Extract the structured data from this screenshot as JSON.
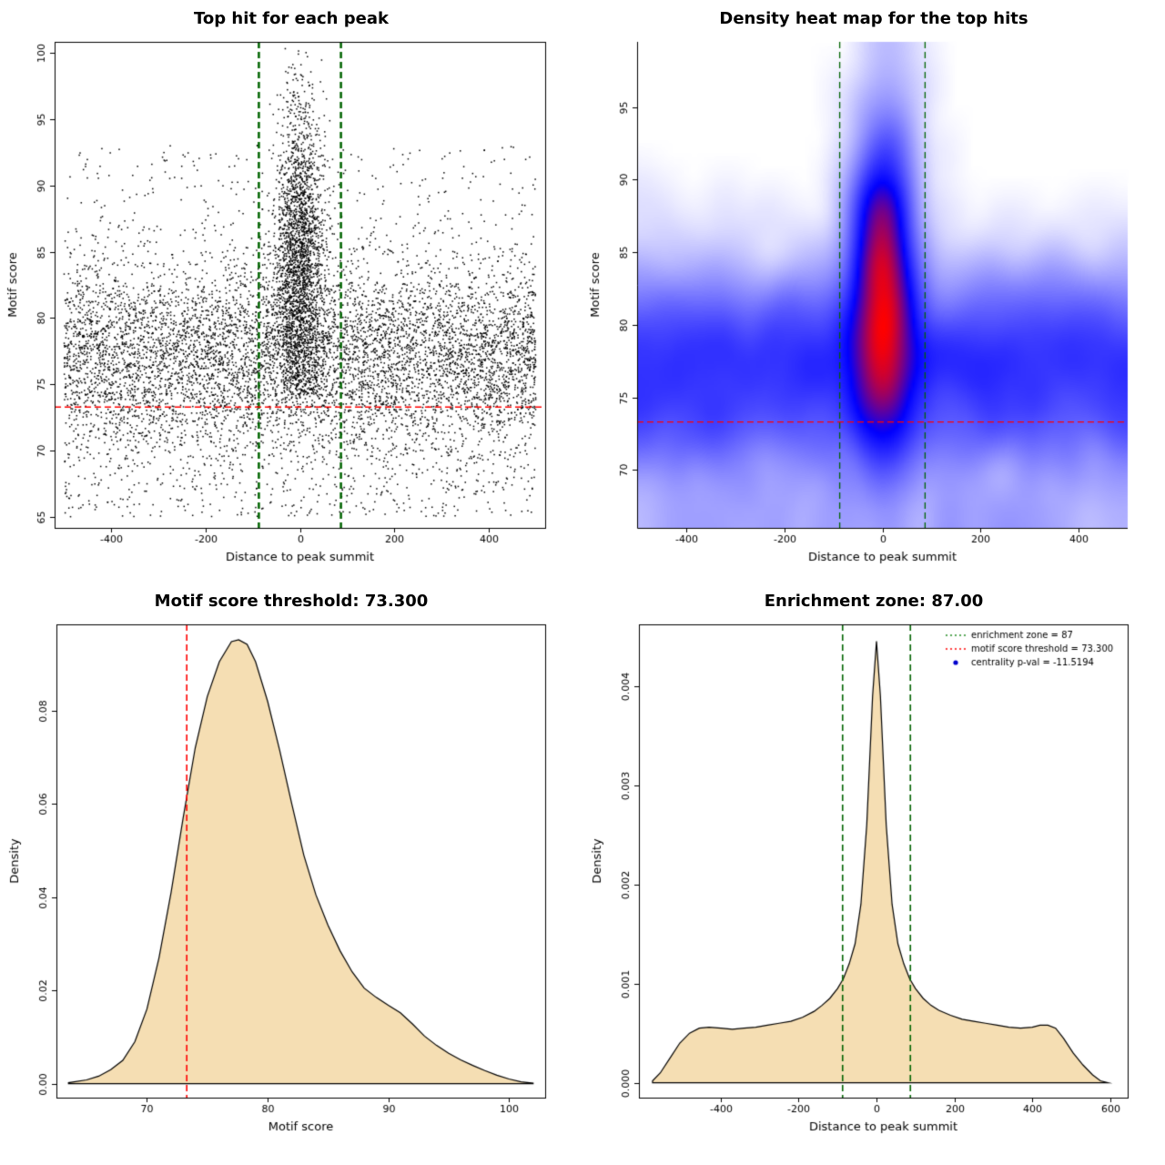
{
  "page": {
    "background": "#FFFFFF"
  },
  "chart_data": [
    {
      "id": "top-hit-scatter",
      "type": "scatter",
      "title": "Top hit for each peak",
      "xlabel": "Distance to peak summit",
      "ylabel": "Motif score",
      "xlim": [
        -520,
        520
      ],
      "ylim": [
        64.2,
        100.8
      ],
      "xticks": [
        -400,
        -200,
        0,
        200,
        400
      ],
      "xtick_labels": [
        "-400",
        "-200",
        "0",
        "200",
        "400"
      ],
      "yticks": [
        65,
        70,
        75,
        80,
        85,
        90,
        95,
        100
      ],
      "ytick_labels": [
        "65",
        "70",
        "75",
        "80",
        "85",
        "90",
        "95",
        "100"
      ],
      "point_color": "#000000",
      "vlines": {
        "x": [
          -87,
          87
        ],
        "color": "#006400",
        "dash": "dashed",
        "width": 2.5
      },
      "hline": {
        "y": 73.3,
        "color": "#FF0000",
        "dash": "dashed",
        "width": 1.6
      },
      "point_cloud": {
        "seed": 42,
        "x_range": [
          -500,
          500
        ],
        "background": {
          "n": 6500,
          "y_mean": 77.3,
          "y_sd": 3.4
        },
        "low_tail": {
          "n": 900,
          "y_min": 65,
          "y_max": 74.5
        },
        "high_tail": {
          "n": 350,
          "y_min": 84,
          "y_max": 93
        },
        "central": {
          "n": 2600,
          "x_sd": 26,
          "y_mean": 84,
          "y_sd": 6.5,
          "y_min": 74,
          "y_max": 100.4
        }
      }
    },
    {
      "id": "density-heatmap",
      "type": "heatmap",
      "title": "Density heat map for the top hits",
      "xlabel": "Distance to peak summit",
      "ylabel": "Motif score",
      "xlim": [
        -500,
        500
      ],
      "ylim": [
        66,
        99.5
      ],
      "xticks": [
        -400,
        -200,
        0,
        200,
        400
      ],
      "xtick_labels": [
        "-400",
        "-200",
        "0",
        "200",
        "400"
      ],
      "yticks": [
        70,
        75,
        80,
        85,
        90,
        95
      ],
      "ytick_labels": [
        "70",
        "75",
        "80",
        "85",
        "90",
        "95"
      ],
      "colormap": [
        "#FFFFFF",
        "#0000FF",
        "#FF0000"
      ],
      "vlines": {
        "x": [
          -87,
          87
        ],
        "color": "#006400",
        "dash": "dashed",
        "width": 1.3
      },
      "hline": {
        "y": 73.3,
        "color": "#FF0000",
        "dash": "dashed",
        "width": 1.3
      },
      "kde_cloud": {
        "seed": 7,
        "x_range": [
          -500,
          500
        ],
        "background": {
          "n": 6000,
          "y_mean": 77.2,
          "y_sd": 3.3
        },
        "low_band": {
          "n": 900,
          "y_min": 66,
          "y_max": 74
        },
        "central": {
          "n": 3000,
          "x_sd": 30,
          "y_mean": 82,
          "y_sd": 6
        }
      }
    },
    {
      "id": "motif-score-density",
      "type": "area",
      "title": "Motif score threshold: 73.300",
      "xlabel": "Motif score",
      "ylabel": "Density",
      "xlim": [
        62.5,
        103
      ],
      "ylim": [
        -0.003,
        0.0985
      ],
      "xticks": [
        70,
        80,
        90,
        100
      ],
      "xtick_labels": [
        "70",
        "80",
        "90",
        "100"
      ],
      "yticks": [
        0,
        0.02,
        0.04,
        0.06,
        0.08
      ],
      "ytick_labels": [
        "0.00",
        "0.02",
        "0.04",
        "0.06",
        "0.08"
      ],
      "fill": "#F5DEB3",
      "line_color": "#000000",
      "vlines": {
        "x": [
          73.3
        ],
        "color": "#FF0000",
        "dash": "dashed",
        "width": 1.6
      },
      "curve": {
        "x": [
          63.5,
          65,
          66,
          67,
          68,
          69,
          70,
          71,
          72,
          73,
          74,
          75,
          76,
          77,
          77.6,
          78.3,
          79,
          80,
          81,
          82,
          83,
          84,
          85,
          86,
          87,
          88,
          89,
          90,
          91,
          92,
          93,
          94,
          95,
          96,
          97,
          98,
          99,
          100,
          101,
          102
        ],
        "y": [
          0.0002,
          0.0008,
          0.0016,
          0.003,
          0.005,
          0.009,
          0.016,
          0.027,
          0.041,
          0.057,
          0.072,
          0.083,
          0.0905,
          0.0948,
          0.0952,
          0.0942,
          0.0905,
          0.082,
          0.0715,
          0.06,
          0.049,
          0.0405,
          0.034,
          0.0285,
          0.024,
          0.0205,
          0.0185,
          0.0168,
          0.0152,
          0.0128,
          0.0102,
          0.0082,
          0.0065,
          0.0051,
          0.0039,
          0.0028,
          0.0018,
          0.001,
          0.0004,
          0.0001
        ]
      }
    },
    {
      "id": "distance-density",
      "type": "area",
      "title": "Enrichment zone: 87.00",
      "xlabel": "Distance to peak summit",
      "ylabel": "Density",
      "xlim": [
        -610,
        645
      ],
      "ylim": [
        -0.00015,
        0.00462
      ],
      "xticks": [
        -400,
        -200,
        0,
        200,
        400,
        600
      ],
      "xtick_labels": [
        "-400",
        "-200",
        "0",
        "200",
        "400",
        "600"
      ],
      "yticks": [
        0,
        0.001,
        0.002,
        0.003,
        0.004
      ],
      "ytick_labels": [
        "0.000",
        "0.001",
        "0.002",
        "0.003",
        "0.004"
      ],
      "fill": "#F5DEB3",
      "line_color": "#000000",
      "vlines": {
        "x": [
          -87,
          87
        ],
        "color": "#006400",
        "dash": "dashed",
        "width": 1.6
      },
      "legend": {
        "position": "topright",
        "entries": [
          {
            "marker": "line",
            "dash": "dotted",
            "color": "#228B22",
            "label": "enrichment zone = 87"
          },
          {
            "marker": "line",
            "dash": "dotted",
            "color": "#FF0000",
            "label": "motif score threshold = 73.300"
          },
          {
            "marker": "point",
            "color": "#0000CD",
            "label": "centrality p-val = -11.5194"
          }
        ]
      },
      "curve": {
        "x": [
          -575,
          -555,
          -530,
          -505,
          -480,
          -455,
          -430,
          -400,
          -370,
          -340,
          -310,
          -280,
          -250,
          -220,
          -190,
          -160,
          -140,
          -120,
          -100,
          -85,
          -70,
          -55,
          -40,
          -25,
          -10,
          0,
          10,
          25,
          40,
          55,
          70,
          85,
          100,
          120,
          140,
          160,
          190,
          220,
          250,
          280,
          310,
          340,
          370,
          400,
          420,
          440,
          460,
          480,
          505,
          530,
          555,
          575,
          595
        ],
        "y": [
          2e-05,
          0.0001,
          0.00025,
          0.0004,
          0.0005,
          0.00055,
          0.00056,
          0.00055,
          0.00054,
          0.00055,
          0.00056,
          0.00058,
          0.0006,
          0.00062,
          0.00066,
          0.00072,
          0.00078,
          0.00085,
          0.00095,
          0.00105,
          0.0012,
          0.0014,
          0.0018,
          0.0026,
          0.0039,
          0.00445,
          0.0039,
          0.0026,
          0.0018,
          0.0014,
          0.0012,
          0.00105,
          0.00095,
          0.00085,
          0.00078,
          0.00073,
          0.00068,
          0.00064,
          0.00062,
          0.0006,
          0.00058,
          0.00056,
          0.00055,
          0.00056,
          0.00058,
          0.00058,
          0.00055,
          0.00045,
          0.0003,
          0.00018,
          8e-05,
          2e-05,
          0
        ]
      }
    }
  ]
}
